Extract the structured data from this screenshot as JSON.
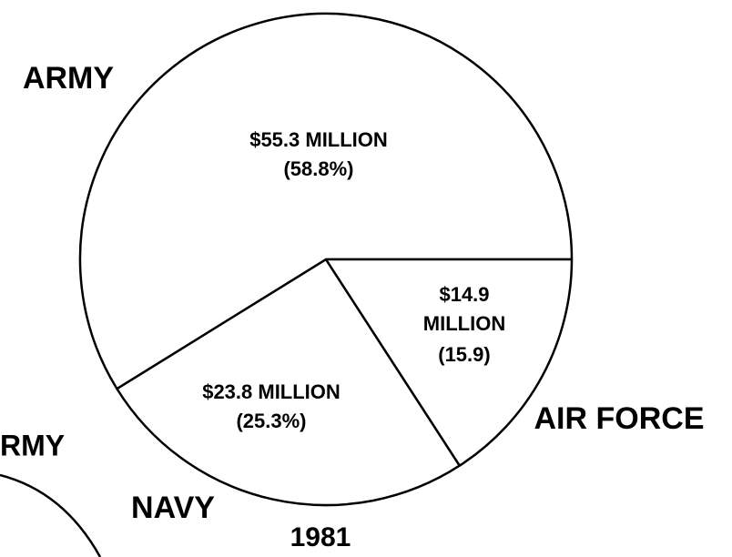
{
  "chart_data": {
    "type": "pie",
    "title": "1981",
    "categories": [
      "ARMY",
      "NAVY",
      "AIR FORCE"
    ],
    "values": [
      55.3,
      23.8,
      14.9
    ],
    "value_labels": [
      "$55.3 MILLION",
      "$23.8 MILLION",
      "$14.9 MILLION"
    ],
    "percents": [
      58.8,
      25.3,
      15.9
    ],
    "percent_labels": [
      "(58.8%)",
      "(25.3%)",
      "(15.9)"
    ],
    "color": "#ffffff"
  },
  "other_labels": [
    "RMY"
  ]
}
